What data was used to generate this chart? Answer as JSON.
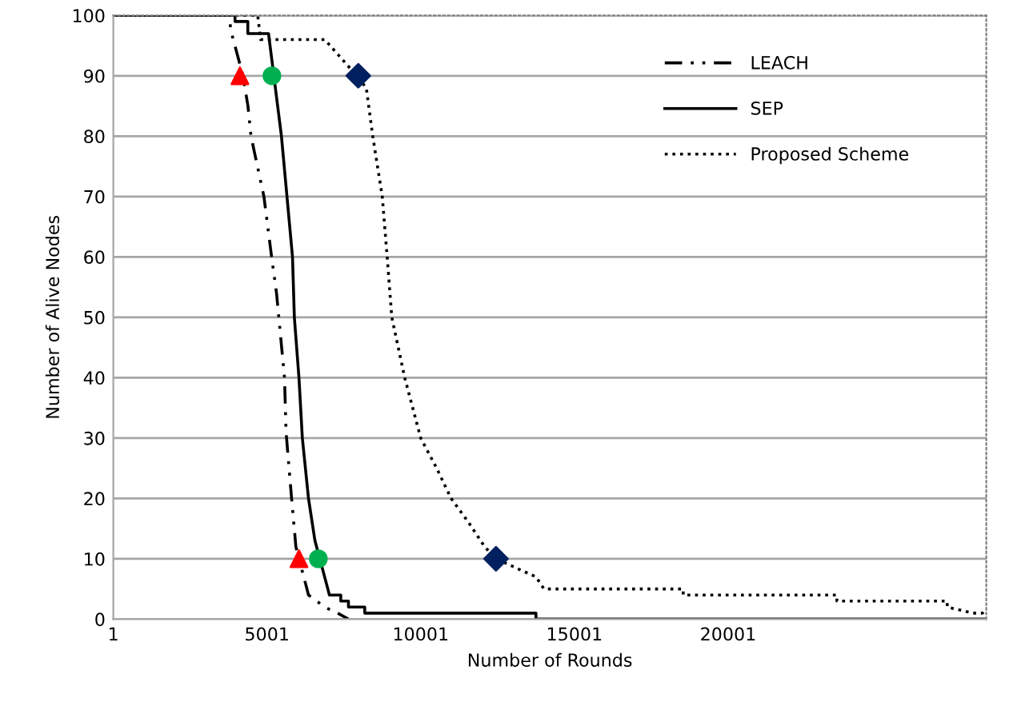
{
  "chart_data": {
    "type": "line",
    "xlabel": "Number of Rounds",
    "ylabel": "Number of Alive Nodes",
    "xlim": [
      1,
      28400
    ],
    "xticks": [
      1,
      5001,
      10001,
      15001,
      20001
    ],
    "ylim": [
      0,
      100
    ],
    "yticks": [
      0,
      10,
      20,
      30,
      40,
      50,
      60,
      70,
      80,
      90,
      100
    ],
    "grid": "y",
    "legend": "top right",
    "series": [
      {
        "name": "LEACH",
        "line_style": "dashdot",
        "color": "#000000",
        "x": [
          1,
          3750,
          3850,
          4220,
          4380,
          4480,
          4900,
          5150,
          5310,
          5570,
          5620,
          5800,
          5940,
          6040,
          6300,
          6350,
          6880,
          7300,
          7650
        ],
        "values": [
          100,
          100,
          97,
          90,
          85,
          80,
          70,
          60,
          54,
          40,
          31,
          20,
          12,
          10,
          5,
          4,
          2,
          1,
          0
        ]
      },
      {
        "name": "SEP",
        "line_style": "solid",
        "color": "#000000",
        "x": [
          1,
          3960,
          3960,
          4376,
          4376,
          4790,
          5050,
          5470,
          5830,
          5890,
          6040,
          6150,
          6350,
          6560,
          6980,
          7030,
          7400,
          7400,
          7650,
          7650,
          8180,
          8180,
          13750,
          13750,
          28400
        ],
        "values": [
          100,
          100,
          99,
          99,
          97,
          97,
          97,
          80,
          60,
          50,
          40,
          30,
          20,
          13,
          5,
          4,
          4,
          3,
          3,
          2,
          2,
          1,
          1,
          0,
          0
        ]
      },
      {
        "name": "Proposed Scheme",
        "line_style": "dotted",
        "color": "#000000",
        "x": [
          1,
          4700,
          4790,
          6880,
          7920,
          8230,
          8440,
          8750,
          8910,
          9060,
          9480,
          10000,
          10520,
          10990,
          11560,
          12080,
          12450,
          13750,
          14010,
          18540,
          18540,
          23540,
          23540,
          27130,
          27130,
          27970,
          28280,
          28400
        ],
        "values": [
          100,
          100,
          96,
          96,
          90,
          88,
          80,
          70,
          60,
          50,
          40,
          30,
          25,
          20,
          16,
          12,
          10,
          7,
          5,
          5,
          4,
          4,
          3,
          3,
          2,
          1,
          1,
          0
        ]
      },
      {
        "type": "scatter",
        "marker": "triangle",
        "color": "#ff0000",
        "x": [
          4120,
          6040
        ],
        "values": [
          90,
          10
        ]
      },
      {
        "type": "scatter",
        "marker": "circle",
        "color": "#00b050",
        "x": [
          5160,
          6670
        ],
        "values": [
          90,
          10
        ]
      },
      {
        "type": "scatter",
        "marker": "diamond",
        "color": "#002060",
        "x": [
          7970,
          12450
        ],
        "values": [
          90,
          10
        ]
      }
    ]
  }
}
